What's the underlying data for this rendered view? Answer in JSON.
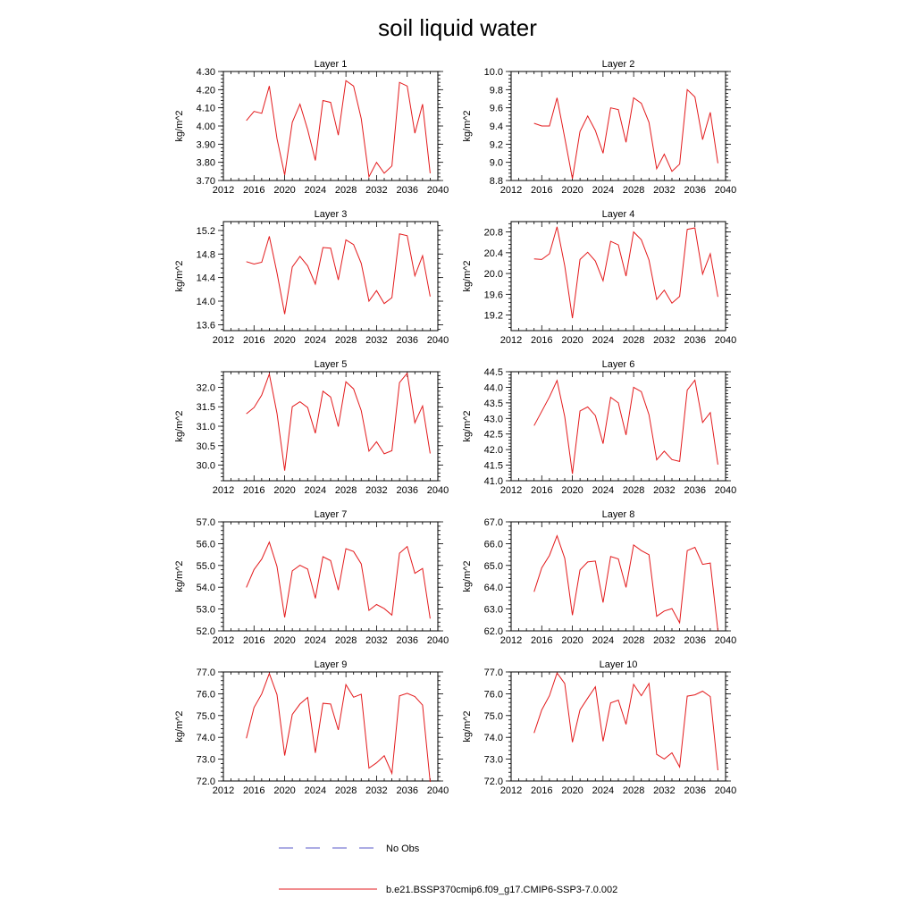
{
  "title": "soil liquid water",
  "legend": {
    "obs_label": "No Obs",
    "model_label": "b.e21.BSSP370cmip6.f09_g17.CMIP6-SSP3-7.0.002",
    "obs_color": "#5a5ac8",
    "model_color": "#e31a1c"
  },
  "chart_data": [
    {
      "type": "line",
      "title": "Layer 1",
      "ylabel": "kg/m^2",
      "xlim": [
        2012,
        2040
      ],
      "ylim": [
        3.7,
        4.3
      ],
      "xticks": [
        "2012",
        "2016",
        "2020",
        "2024",
        "2028",
        "2032",
        "2036",
        "2040"
      ],
      "yticks": [
        "3.70",
        "3.80",
        "3.90",
        "4.00",
        "4.10",
        "4.20",
        "4.30"
      ],
      "x": [
        2015,
        2016,
        2017,
        2018,
        2019,
        2020,
        2021,
        2022,
        2023,
        2024,
        2025,
        2026,
        2027,
        2028,
        2029,
        2030,
        2031,
        2032,
        2033,
        2034,
        2035,
        2036,
        2037,
        2038,
        2039
      ],
      "series": [
        {
          "values": [
            4.03,
            4.08,
            4.07,
            4.22,
            3.93,
            3.73,
            4.02,
            4.12,
            3.98,
            3.81,
            4.14,
            4.13,
            3.95,
            4.25,
            4.22,
            4.04,
            3.72,
            3.8,
            3.74,
            3.78,
            4.24,
            4.22,
            3.96,
            4.12,
            3.74
          ]
        }
      ]
    },
    {
      "type": "line",
      "title": "Layer 2",
      "ylabel": "kg/m^2",
      "xlim": [
        2012,
        2040
      ],
      "ylim": [
        8.8,
        10.0
      ],
      "xticks": [
        "2012",
        "2016",
        "2020",
        "2024",
        "2028",
        "2032",
        "2036",
        "2040"
      ],
      "yticks": [
        "8.8",
        "9.0",
        "9.2",
        "9.4",
        "9.6",
        "9.8",
        "10.0"
      ],
      "x": [
        2015,
        2016,
        2017,
        2018,
        2019,
        2020,
        2021,
        2022,
        2023,
        2024,
        2025,
        2026,
        2027,
        2028,
        2029,
        2030,
        2031,
        2032,
        2033,
        2034,
        2035,
        2036,
        2037,
        2038,
        2039
      ],
      "series": [
        {
          "values": [
            9.43,
            9.4,
            9.4,
            9.71,
            9.27,
            8.82,
            9.34,
            9.51,
            9.35,
            9.1,
            9.6,
            9.58,
            9.22,
            9.71,
            9.65,
            9.44,
            8.93,
            9.09,
            8.9,
            8.98,
            9.8,
            9.72,
            9.25,
            9.55,
            8.99
          ]
        }
      ]
    },
    {
      "type": "line",
      "title": "Layer 3",
      "ylabel": "kg/m^2",
      "xlim": [
        2012,
        2040
      ],
      "ylim": [
        13.5,
        15.35
      ],
      "xticks": [
        "2012",
        "2016",
        "2020",
        "2024",
        "2028",
        "2032",
        "2036",
        "2040"
      ],
      "yticks": [
        "13.6",
        "14.0",
        "14.4",
        "14.8",
        "15.2"
      ],
      "x": [
        2015,
        2016,
        2017,
        2018,
        2019,
        2020,
        2021,
        2022,
        2023,
        2024,
        2025,
        2026,
        2027,
        2028,
        2029,
        2030,
        2031,
        2032,
        2033,
        2034,
        2035,
        2036,
        2037,
        2038,
        2039
      ],
      "series": [
        {
          "values": [
            14.67,
            14.63,
            14.66,
            15.1,
            14.48,
            13.78,
            14.58,
            14.76,
            14.6,
            14.29,
            14.91,
            14.9,
            14.36,
            15.04,
            14.96,
            14.64,
            14.0,
            14.18,
            13.96,
            14.06,
            15.14,
            15.11,
            14.43,
            14.77,
            14.08
          ]
        }
      ]
    },
    {
      "type": "line",
      "title": "Layer 4",
      "ylabel": "kg/m^2",
      "xlim": [
        2012,
        2040
      ],
      "ylim": [
        18.9,
        21.0
      ],
      "xticks": [
        "2012",
        "2016",
        "2020",
        "2024",
        "2028",
        "2032",
        "2036",
        "2040"
      ],
      "yticks": [
        "19.2",
        "19.6",
        "20.0",
        "20.4",
        "20.8"
      ],
      "x": [
        2015,
        2016,
        2017,
        2018,
        2019,
        2020,
        2021,
        2022,
        2023,
        2024,
        2025,
        2026,
        2027,
        2028,
        2029,
        2030,
        2031,
        2032,
        2033,
        2034,
        2035,
        2036,
        2037,
        2038,
        2039
      ],
      "series": [
        {
          "values": [
            20.28,
            20.27,
            20.38,
            20.9,
            20.15,
            19.14,
            20.27,
            20.41,
            20.24,
            19.86,
            20.62,
            20.55,
            19.95,
            20.8,
            20.65,
            20.26,
            19.5,
            19.68,
            19.43,
            19.56,
            20.85,
            20.88,
            19.99,
            20.38,
            19.55
          ]
        }
      ]
    },
    {
      "type": "line",
      "title": "Layer 5",
      "ylabel": "kg/m^2",
      "xlim": [
        2012,
        2040
      ],
      "ylim": [
        29.6,
        32.4
      ],
      "xticks": [
        "2012",
        "2016",
        "2020",
        "2024",
        "2028",
        "2032",
        "2036",
        "2040"
      ],
      "yticks": [
        "30.0",
        "30.5",
        "31.0",
        "31.5",
        "32.0"
      ],
      "x": [
        2015,
        2016,
        2017,
        2018,
        2019,
        2020,
        2021,
        2022,
        2023,
        2024,
        2025,
        2026,
        2027,
        2028,
        2029,
        2030,
        2031,
        2032,
        2033,
        2034,
        2035,
        2036,
        2037,
        2038,
        2039
      ],
      "series": [
        {
          "values": [
            31.32,
            31.48,
            31.8,
            32.34,
            31.33,
            29.86,
            31.5,
            31.63,
            31.48,
            30.82,
            31.9,
            31.75,
            30.99,
            32.14,
            31.96,
            31.4,
            30.36,
            30.6,
            30.29,
            30.37,
            32.12,
            32.36,
            31.09,
            31.52,
            30.3
          ]
        }
      ]
    },
    {
      "type": "line",
      "title": "Layer 6",
      "ylabel": "kg/m^2",
      "xlim": [
        2012,
        2040
      ],
      "ylim": [
        41.0,
        44.5
      ],
      "xticks": [
        "2012",
        "2016",
        "2020",
        "2024",
        "2028",
        "2032",
        "2036",
        "2040"
      ],
      "yticks": [
        "41.0",
        "41.5",
        "42.0",
        "42.5",
        "43.0",
        "43.5",
        "44.0",
        "44.5"
      ],
      "x": [
        2015,
        2016,
        2017,
        2018,
        2019,
        2020,
        2021,
        2022,
        2023,
        2024,
        2025,
        2026,
        2027,
        2028,
        2029,
        2030,
        2031,
        2032,
        2033,
        2034,
        2035,
        2036,
        2037,
        2038,
        2039
      ],
      "series": [
        {
          "values": [
            42.77,
            43.23,
            43.69,
            44.22,
            43.06,
            41.22,
            43.24,
            43.37,
            43.09,
            42.19,
            43.68,
            43.5,
            42.47,
            44.0,
            43.86,
            43.12,
            41.67,
            41.95,
            41.68,
            41.62,
            43.91,
            44.23,
            42.87,
            43.19,
            41.52
          ]
        }
      ]
    },
    {
      "type": "line",
      "title": "Layer 7",
      "ylabel": "kg/m^2",
      "xlim": [
        2012,
        2040
      ],
      "ylim": [
        52.0,
        57.0
      ],
      "xticks": [
        "2012",
        "2016",
        "2020",
        "2024",
        "2028",
        "2032",
        "2036",
        "2040"
      ],
      "yticks": [
        "52.0",
        "53.0",
        "54.0",
        "55.0",
        "56.0",
        "57.0"
      ],
      "x": [
        2015,
        2016,
        2017,
        2018,
        2019,
        2020,
        2021,
        2022,
        2023,
        2024,
        2025,
        2026,
        2027,
        2028,
        2029,
        2030,
        2031,
        2032,
        2033,
        2034,
        2035,
        2036,
        2037,
        2038,
        2039
      ],
      "series": [
        {
          "values": [
            53.99,
            54.81,
            55.29,
            56.07,
            54.95,
            52.62,
            54.75,
            55.01,
            54.83,
            53.49,
            55.4,
            55.22,
            53.87,
            55.77,
            55.64,
            55.07,
            52.94,
            53.21,
            53.02,
            52.72,
            55.56,
            55.87,
            54.64,
            54.86,
            52.56
          ]
        }
      ]
    },
    {
      "type": "line",
      "title": "Layer 8",
      "ylabel": "kg/m^2",
      "xlim": [
        2012,
        2040
      ],
      "ylim": [
        62.0,
        67.0
      ],
      "xticks": [
        "2012",
        "2016",
        "2020",
        "2024",
        "2028",
        "2032",
        "2036",
        "2040"
      ],
      "yticks": [
        "62.0",
        "63.0",
        "64.0",
        "65.0",
        "66.0",
        "67.0"
      ],
      "x": [
        2015,
        2016,
        2017,
        2018,
        2019,
        2020,
        2021,
        2022,
        2023,
        2024,
        2025,
        2026,
        2027,
        2028,
        2029,
        2030,
        2031,
        2032,
        2033,
        2034,
        2035,
        2036,
        2037,
        2038,
        2039
      ],
      "series": [
        {
          "values": [
            63.79,
            64.89,
            65.46,
            66.36,
            65.33,
            62.72,
            64.79,
            65.16,
            65.2,
            63.3,
            65.41,
            65.3,
            63.99,
            65.94,
            65.68,
            65.49,
            62.67,
            62.91,
            63.02,
            62.37,
            65.68,
            65.83,
            65.05,
            65.11,
            62.02
          ]
        }
      ]
    },
    {
      "type": "line",
      "title": "Layer 9",
      "ylabel": "kg/m^2",
      "xlim": [
        2012,
        2040
      ],
      "ylim": [
        72.0,
        77.0
      ],
      "xticks": [
        "2012",
        "2016",
        "2020",
        "2024",
        "2028",
        "2032",
        "2036",
        "2040"
      ],
      "yticks": [
        "72.0",
        "73.0",
        "74.0",
        "75.0",
        "76.0",
        "77.0"
      ],
      "x": [
        2015,
        2016,
        2017,
        2018,
        2019,
        2020,
        2021,
        2022,
        2023,
        2024,
        2025,
        2026,
        2027,
        2028,
        2029,
        2030,
        2031,
        2032,
        2033,
        2034,
        2035,
        2036,
        2037,
        2038,
        2039
      ],
      "series": [
        {
          "values": [
            73.96,
            75.37,
            75.99,
            76.93,
            75.96,
            73.17,
            75.05,
            75.53,
            75.83,
            73.29,
            75.56,
            75.53,
            74.34,
            76.42,
            75.84,
            75.98,
            72.59,
            72.83,
            73.16,
            72.35,
            75.9,
            76.02,
            75.87,
            75.48,
            71.96
          ]
        }
      ]
    },
    {
      "type": "line",
      "title": "Layer 10",
      "ylabel": "kg/m^2",
      "xlim": [
        2012,
        2040
      ],
      "ylim": [
        72.0,
        77.0
      ],
      "xticks": [
        "2012",
        "2016",
        "2020",
        "2024",
        "2028",
        "2032",
        "2036",
        "2040"
      ],
      "yticks": [
        "72.0",
        "73.0",
        "74.0",
        "75.0",
        "76.0",
        "77.0"
      ],
      "x": [
        2015,
        2016,
        2017,
        2018,
        2019,
        2020,
        2021,
        2022,
        2023,
        2024,
        2025,
        2026,
        2027,
        2028,
        2029,
        2030,
        2031,
        2032,
        2033,
        2034,
        2035,
        2036,
        2037,
        2038,
        2039
      ],
      "series": [
        {
          "values": [
            74.2,
            75.26,
            75.91,
            76.95,
            76.47,
            73.78,
            75.26,
            75.8,
            76.32,
            73.82,
            75.58,
            75.71,
            74.6,
            76.43,
            75.91,
            76.47,
            73.22,
            73.01,
            73.29,
            72.64,
            75.89,
            75.95,
            76.12,
            75.87,
            72.49
          ]
        }
      ]
    }
  ]
}
